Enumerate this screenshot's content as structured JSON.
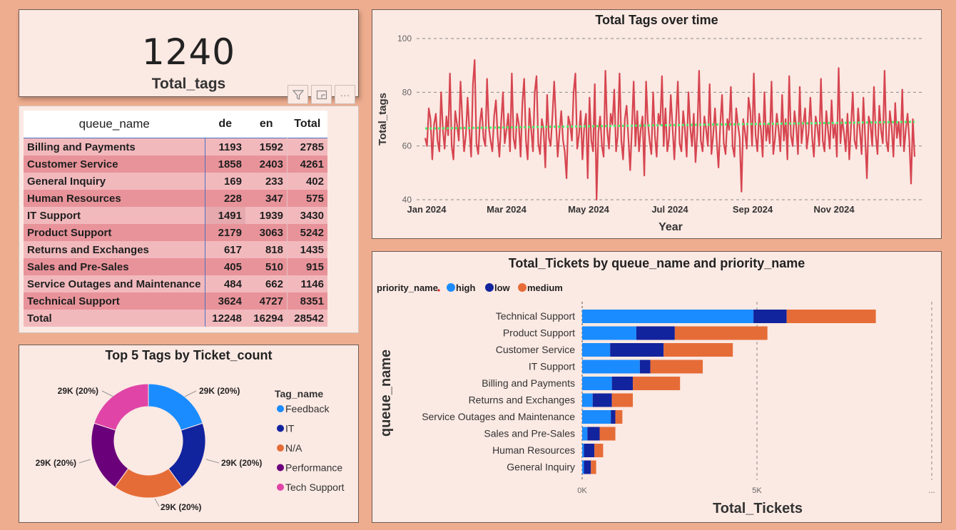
{
  "kpi": {
    "value": "1240",
    "label": "Total_tags"
  },
  "toolbar": {
    "filter_icon": "filter-icon",
    "focus_icon": "focus-mode-icon",
    "more_label": "···"
  },
  "matrix": {
    "headers": [
      "queue_name",
      "de",
      "en",
      "Total"
    ],
    "rows": [
      {
        "name": "Billing and Payments",
        "de": "1193",
        "en": "1592",
        "total": "2785"
      },
      {
        "name": "Customer Service",
        "de": "1858",
        "en": "2403",
        "total": "4261"
      },
      {
        "name": "General Inquiry",
        "de": "169",
        "en": "233",
        "total": "402"
      },
      {
        "name": "Human Resources",
        "de": "228",
        "en": "347",
        "total": "575"
      },
      {
        "name": "IT Support",
        "de": "1491",
        "en": "1939",
        "total": "3430"
      },
      {
        "name": "Product Support",
        "de": "2179",
        "en": "3063",
        "total": "5242"
      },
      {
        "name": "Returns and Exchanges",
        "de": "617",
        "en": "818",
        "total": "1435"
      },
      {
        "name": "Sales and Pre-Sales",
        "de": "405",
        "en": "510",
        "total": "915"
      },
      {
        "name": "Service Outages and Maintenance",
        "de": "484",
        "en": "662",
        "total": "1146"
      },
      {
        "name": "Technical Support",
        "de": "3624",
        "en": "4727",
        "total": "8351"
      }
    ],
    "total_row": {
      "name": "Total",
      "de": "12248",
      "en": "16294",
      "total": "28542"
    }
  },
  "chart_data": [
    {
      "type": "line",
      "title": "Total Tags over time",
      "xlabel": "Year",
      "ylabel": "Total_tags",
      "x_range": [
        "2024-01-01",
        "2024-12-31"
      ],
      "xticks": [
        "Jan 2024",
        "Mar 2024",
        "May 2024",
        "Jul 2024",
        "Sep 2024",
        "Nov 2024"
      ],
      "ylim": [
        40,
        100
      ],
      "yticks": [
        40,
        60,
        80,
        100
      ],
      "grid": true,
      "series": [
        {
          "values": [
            63,
            60,
            74,
            70,
            55,
            68,
            72,
            62,
            58,
            80,
            66,
            59,
            71,
            64,
            87,
            60,
            55,
            73,
            68,
            62,
            84,
            70,
            58,
            64,
            78,
            66,
            56,
            83,
            92,
            61,
            57,
            69,
            74,
            63,
            60,
            85,
            67,
            62,
            58,
            71,
            77,
            64,
            56,
            69,
            80,
            61,
            66,
            72,
            58,
            87,
            63,
            59,
            72,
            68,
            56,
            76,
            85,
            62,
            55,
            74,
            66,
            58,
            80,
            86,
            61,
            57,
            70,
            66,
            52,
            79,
            63,
            60,
            71,
            84,
            69,
            56,
            65,
            73,
            62,
            58,
            48,
            71,
            68,
            62,
            80,
            87,
            59,
            64,
            73,
            55,
            67,
            72,
            48,
            78,
            62,
            58,
            83,
            40,
            65,
            71,
            60,
            56,
            88,
            66,
            59,
            72,
            68,
            81,
            58,
            64,
            87,
            62,
            55,
            70,
            75,
            63,
            51,
            67,
            84,
            60,
            73,
            58,
            66,
            71,
            49,
            84,
            69,
            62,
            57,
            80,
            64,
            56,
            72,
            68,
            86,
            60,
            74,
            58,
            63,
            79,
            67,
            55,
            70,
            84,
            61,
            58,
            73,
            66,
            56,
            80,
            67,
            60,
            72,
            54,
            65,
            88,
            62,
            58,
            71,
            66,
            60,
            83,
            57,
            64,
            74,
            62,
            52,
            68,
            79,
            61,
            57,
            70,
            66,
            82,
            60,
            56,
            74,
            68,
            63,
            43,
            70,
            65,
            59,
            78,
            73,
            60,
            87,
            64,
            58,
            72,
            66,
            56,
            80,
            62,
            68,
            61,
            84,
            57,
            63,
            72,
            66,
            58,
            79,
            62,
            70,
            55,
            86,
            64,
            60,
            73,
            67,
            57,
            82,
            61,
            68,
            74,
            59,
            65,
            78,
            63,
            56,
            71,
            67,
            60,
            85,
            62,
            58,
            73,
            66,
            59,
            77,
            63,
            68,
            56,
            89,
            61,
            70,
            65,
            58,
            72,
            55,
            67,
            80,
            62,
            59,
            74,
            66,
            57,
            78,
            63,
            48,
            71,
            68,
            60,
            82,
            64,
            57,
            75,
            66,
            61,
            88,
            62,
            58,
            73,
            67,
            56,
            76,
            63,
            69,
            60,
            81,
            58,
            66,
            72,
            62,
            46,
            70,
            56
          ]
        },
        {
          "name": "trend",
          "values": [
            66.5,
            69
          ]
        }
      ]
    },
    {
      "type": "pie",
      "title": "Top 5 Tags by Ticket_count",
      "legend_title": "Tag_name",
      "legend_placement": "right",
      "slices": [
        {
          "name": "Feedback",
          "label": "29K (20%)",
          "value": 20,
          "color": "#1a8cff"
        },
        {
          "name": "IT",
          "label": "29K (20%)",
          "value": 20,
          "color": "#12239e"
        },
        {
          "name": "N/A",
          "label": "29K (20%)",
          "value": 20,
          "color": "#e66c37"
        },
        {
          "name": "Performance",
          "label": "29K (20%)",
          "value": 20,
          "color": "#6b007b"
        },
        {
          "name": "Tech Support",
          "label": "29K (20%)",
          "value": 20,
          "color": "#e044a7"
        }
      ]
    },
    {
      "type": "bar",
      "orientation": "horizontal",
      "stacked": true,
      "title": "Total_Tickets by queue_name and priority_name",
      "xlabel": "Total_Tickets",
      "ylabel": "queue_name",
      "legend_title": "priority_name",
      "legend_placement": "top-left",
      "xticks": [
        "0K",
        "5K"
      ],
      "xlim": [
        0,
        10000
      ],
      "categories": [
        "Technical Support",
        "Product Support",
        "Customer Service",
        "IT Support",
        "Billing and Payments",
        "Returns and Exchanges",
        "Service Outages and Maintenance",
        "Sales and Pre-Sales",
        "Human Resources",
        "General Inquiry"
      ],
      "series": [
        {
          "name": "high",
          "color": "#1a8cff",
          "values": [
            4900,
            1550,
            800,
            1650,
            850,
            300,
            820,
            150,
            50,
            50
          ]
        },
        {
          "name": "low",
          "color": "#12239e",
          "values": [
            950,
            1100,
            1530,
            300,
            600,
            550,
            130,
            350,
            300,
            200
          ]
        },
        {
          "name": "medium",
          "color": "#e66c37",
          "values": [
            2550,
            2650,
            1980,
            1500,
            1350,
            600,
            200,
            450,
            250,
            150
          ]
        }
      ]
    }
  ]
}
